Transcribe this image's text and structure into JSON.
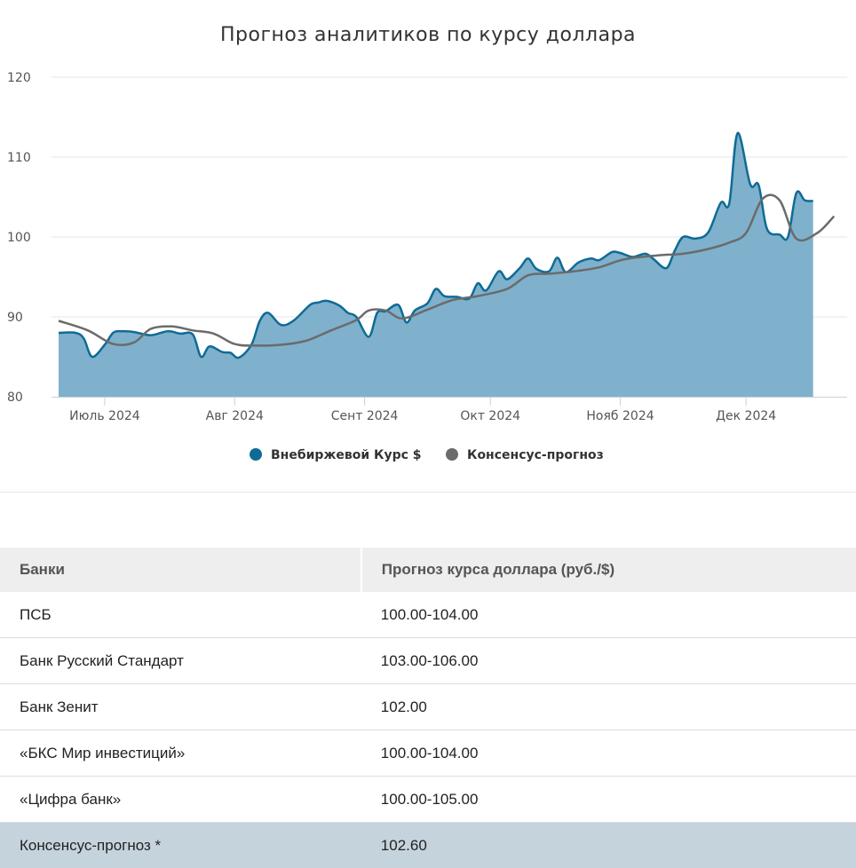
{
  "chart_data": {
    "type": "line",
    "title": "Прогноз аналитиков по курсу доллара",
    "x_tick_labels": [
      "Июль 2024",
      "Авг 2024",
      "Сент 2024",
      "Окт 2024",
      "Нояб 2024",
      "Дек 2024"
    ],
    "ylim": [
      80,
      120
    ],
    "y_ticks": [
      80,
      90,
      100,
      110,
      120
    ],
    "grid": true,
    "legend_position": "bottom",
    "series": [
      {
        "name": "Внебиржевой Курс $",
        "kind": "area",
        "color": "#0f6b96",
        "fill": "#7fb1cc",
        "x": [
          "2024-06-20",
          "2024-06-24",
          "2024-06-26",
          "2024-06-28",
          "2024-07-01",
          "2024-07-03",
          "2024-07-05",
          "2024-07-08",
          "2024-07-12",
          "2024-07-16",
          "2024-07-19",
          "2024-07-22",
          "2024-07-24",
          "2024-07-26",
          "2024-07-29",
          "2024-07-31",
          "2024-08-02",
          "2024-08-05",
          "2024-08-07",
          "2024-08-09",
          "2024-08-12",
          "2024-08-15",
          "2024-08-19",
          "2024-08-21",
          "2024-08-23",
          "2024-08-26",
          "2024-08-28",
          "2024-08-30",
          "2024-09-02",
          "2024-09-04",
          "2024-09-06",
          "2024-09-09",
          "2024-09-11",
          "2024-09-13",
          "2024-09-16",
          "2024-09-18",
          "2024-09-20",
          "2024-09-23",
          "2024-09-26",
          "2024-09-28",
          "2024-09-30",
          "2024-10-03",
          "2024-10-05",
          "2024-10-08",
          "2024-10-10",
          "2024-10-12",
          "2024-10-15",
          "2024-10-17",
          "2024-10-19",
          "2024-10-22",
          "2024-10-25",
          "2024-10-27",
          "2024-10-30",
          "2024-11-01",
          "2024-11-04",
          "2024-11-07",
          "2024-11-09",
          "2024-11-12",
          "2024-11-14",
          "2024-11-16",
          "2024-11-19",
          "2024-11-22",
          "2024-11-25",
          "2024-11-27",
          "2024-11-29",
          "2024-12-02",
          "2024-12-04",
          "2024-12-06",
          "2024-12-09",
          "2024-12-11",
          "2024-12-13",
          "2024-12-15",
          "2024-12-17"
        ],
        "y": [
          88.0,
          88.0,
          87.3,
          85.0,
          86.5,
          88.0,
          88.2,
          88.1,
          87.7,
          88.2,
          87.9,
          87.8,
          85.0,
          86.3,
          85.6,
          85.5,
          84.9,
          86.5,
          89.5,
          90.5,
          89.0,
          89.5,
          91.5,
          91.8,
          92.0,
          91.4,
          90.5,
          90.0,
          87.5,
          90.5,
          90.7,
          91.5,
          89.3,
          90.8,
          91.7,
          93.5,
          92.6,
          92.5,
          92.3,
          94.2,
          93.3,
          95.7,
          94.7,
          96.1,
          97.3,
          96.0,
          95.7,
          97.4,
          95.6,
          96.8,
          97.3,
          97.1,
          98.1,
          98.0,
          97.5,
          97.9,
          97.2,
          96.1,
          98.3,
          100.0,
          99.8,
          100.6,
          104.3,
          104.2,
          113.0,
          106.6,
          106.5,
          101.0,
          100.3,
          100.0,
          105.5,
          104.6,
          104.5
        ]
      },
      {
        "name": "Консенсус-прогноз",
        "kind": "line",
        "color": "#6b6b6b",
        "x": [
          "2024-06-20",
          "2024-06-27",
          "2024-07-03",
          "2024-07-08",
          "2024-07-12",
          "2024-07-17",
          "2024-07-22",
          "2024-07-27",
          "2024-08-01",
          "2024-08-06",
          "2024-08-12",
          "2024-08-18",
          "2024-08-24",
          "2024-08-30",
          "2024-09-02",
          "2024-09-06",
          "2024-09-10",
          "2024-09-16",
          "2024-09-22",
          "2024-09-28",
          "2024-10-05",
          "2024-10-10",
          "2024-10-15",
          "2024-10-21",
          "2024-10-27",
          "2024-11-02",
          "2024-11-10",
          "2024-11-16",
          "2024-11-22",
          "2024-11-27",
          "2024-12-01",
          "2024-12-05",
          "2024-12-09",
          "2024-12-13",
          "2024-12-18",
          "2024-12-22"
        ],
        "y": [
          89.5,
          88.3,
          86.6,
          86.8,
          88.5,
          88.8,
          88.3,
          87.9,
          86.6,
          86.4,
          86.5,
          87.0,
          88.3,
          89.6,
          90.8,
          90.8,
          89.8,
          90.9,
          92.1,
          92.6,
          93.5,
          95.2,
          95.4,
          95.7,
          96.2,
          97.2,
          97.7,
          97.9,
          98.5,
          99.3,
          100.5,
          104.8,
          104.6,
          99.8,
          100.5,
          102.6
        ]
      }
    ]
  },
  "table": {
    "headers": [
      "Банки",
      "Прогноз курса доллара (руб./$)"
    ],
    "rows": [
      [
        "ПСБ",
        "100.00-104.00"
      ],
      [
        "Банк Русский Стандарт",
        "103.00-106.00"
      ],
      [
        "Банк Зенит",
        "102.00"
      ],
      [
        "«БКС Мир инвестиций»",
        "100.00-104.00"
      ],
      [
        "«Цифра банк»",
        "100.00-105.00"
      ],
      [
        "Консенсус-прогноз *",
        "102.60"
      ]
    ],
    "highlight_row_color": "#c5d3dd"
  }
}
